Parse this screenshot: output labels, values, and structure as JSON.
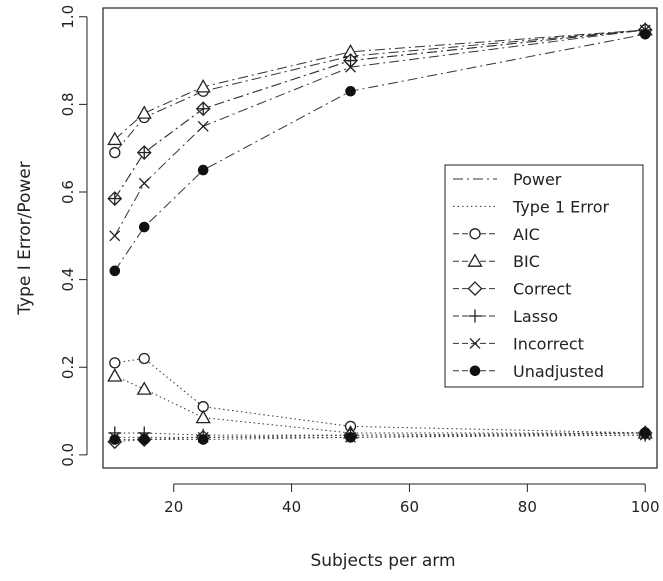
{
  "chart_data": {
    "type": "line",
    "xlabel": "Subjects per arm",
    "ylabel": "Type I Error/Power",
    "xlim": [
      8,
      102
    ],
    "ylim": [
      -0.03,
      1.02
    ],
    "x_ticks": [
      20,
      40,
      60,
      80,
      100
    ],
    "y_ticks": [
      0.0,
      0.2,
      0.4,
      0.6,
      0.8,
      1.0
    ],
    "x_tick_labels": [
      "20",
      "40",
      "60",
      "80",
      "100"
    ],
    "y_tick_labels": [
      "0.0",
      "0.2",
      "0.4",
      "0.6",
      "0.8",
      "1.0"
    ],
    "grid": false,
    "legend_position": "right",
    "legend": {
      "line_types": [
        {
          "label": "Power",
          "dash": "dashdot"
        },
        {
          "label": "Type 1 Error",
          "dash": "dotted"
        }
      ],
      "methods": [
        {
          "label": "AIC",
          "marker": "circle-open"
        },
        {
          "label": "BIC",
          "marker": "triangle-open"
        },
        {
          "label": "Correct",
          "marker": "diamond-open"
        },
        {
          "label": "Lasso",
          "marker": "plus"
        },
        {
          "label": "Incorrect",
          "marker": "x"
        },
        {
          "label": "Unadjusted",
          "marker": "circle-filled"
        }
      ]
    },
    "x": [
      10,
      15,
      25,
      50,
      100
    ],
    "series": [
      {
        "name": "AIC",
        "metric": "Power",
        "marker": "circle-open",
        "values": [
          0.69,
          0.77,
          0.83,
          0.91,
          0.97
        ]
      },
      {
        "name": "BIC",
        "metric": "Power",
        "marker": "triangle-open",
        "values": [
          0.72,
          0.78,
          0.84,
          0.92,
          0.97
        ]
      },
      {
        "name": "Correct",
        "metric": "Power",
        "marker": "diamond-open",
        "values": [
          0.585,
          0.69,
          0.79,
          0.9,
          0.97
        ]
      },
      {
        "name": "Lasso",
        "metric": "Power",
        "marker": "plus",
        "values": [
          0.585,
          0.69,
          0.79,
          0.9,
          0.97
        ]
      },
      {
        "name": "Incorrect",
        "metric": "Power",
        "marker": "x",
        "values": [
          0.5,
          0.62,
          0.75,
          0.885,
          0.97
        ]
      },
      {
        "name": "Unadjusted",
        "metric": "Power",
        "marker": "circle-filled",
        "values": [
          0.42,
          0.52,
          0.65,
          0.83,
          0.96
        ]
      },
      {
        "name": "AIC",
        "metric": "Type 1 Error",
        "marker": "circle-open",
        "values": [
          0.21,
          0.22,
          0.11,
          0.065,
          0.05
        ]
      },
      {
        "name": "BIC",
        "metric": "Type 1 Error",
        "marker": "triangle-open",
        "values": [
          0.18,
          0.15,
          0.085,
          0.05,
          0.05
        ]
      },
      {
        "name": "Correct",
        "metric": "Type 1 Error",
        "marker": "diamond-open",
        "values": [
          0.03,
          0.035,
          0.04,
          0.045,
          0.05
        ]
      },
      {
        "name": "Lasso",
        "metric": "Type 1 Error",
        "marker": "plus",
        "values": [
          0.05,
          0.05,
          0.045,
          0.045,
          0.045
        ]
      },
      {
        "name": "Incorrect",
        "metric": "Type 1 Error",
        "marker": "x",
        "values": [
          0.04,
          0.04,
          0.04,
          0.04,
          0.045
        ]
      },
      {
        "name": "Unadjusted",
        "metric": "Type 1 Error",
        "marker": "circle-filled",
        "values": [
          0.035,
          0.035,
          0.035,
          0.04,
          0.05
        ]
      }
    ]
  }
}
